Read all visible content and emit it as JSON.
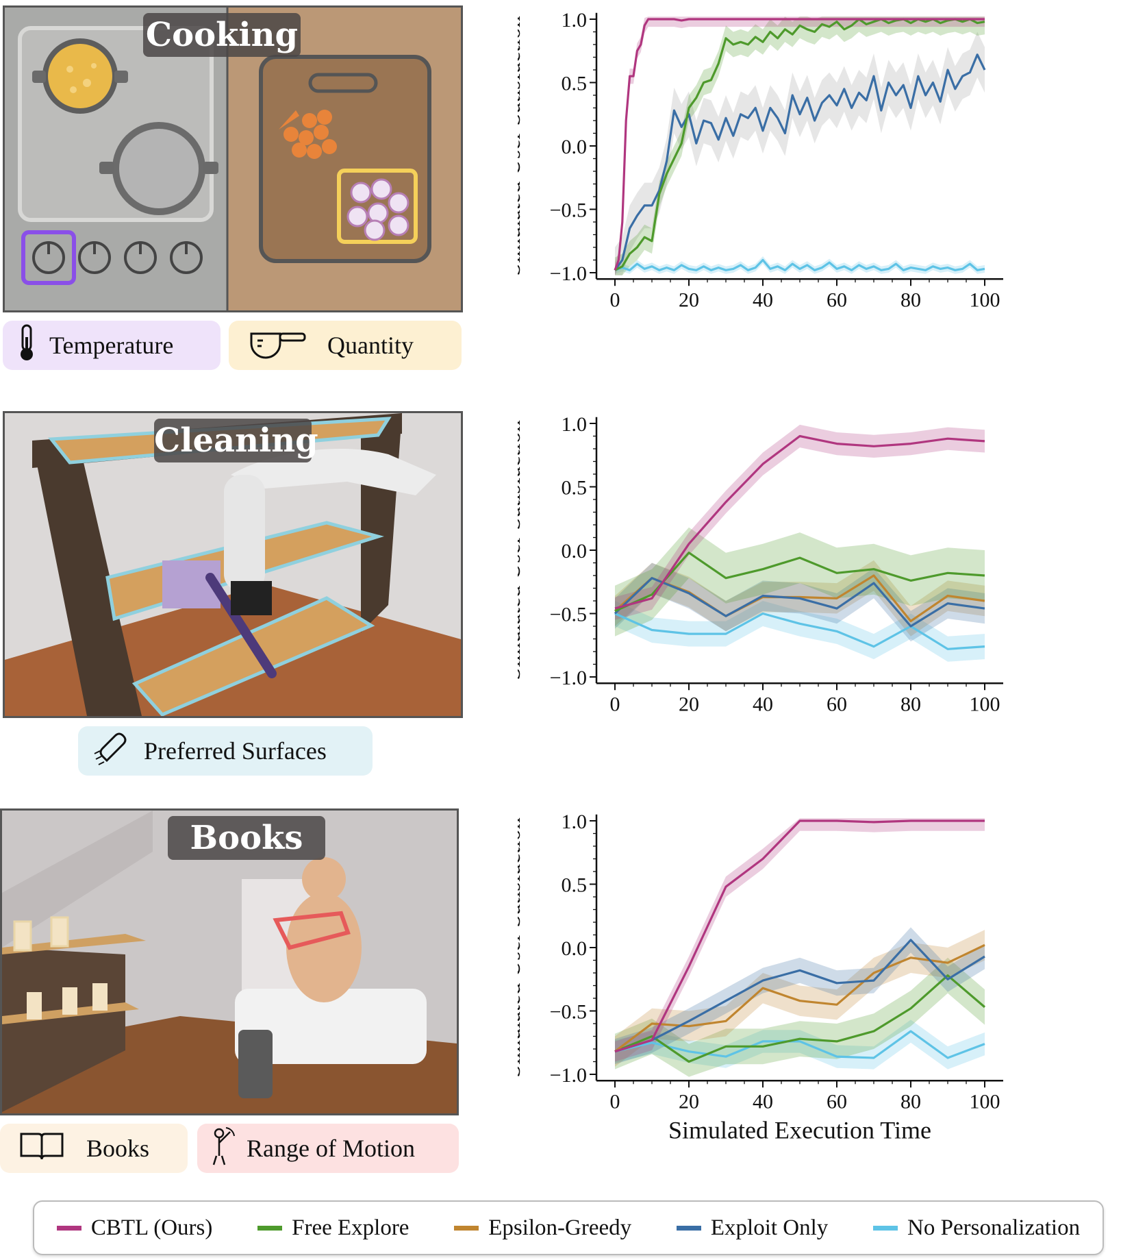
{
  "panels": {
    "cooking": {
      "title": "Cooking",
      "tags": [
        {
          "label": "Temperature",
          "icon": "thermometer-icon",
          "color": "#efe3fa"
        },
        {
          "label": "Quantity",
          "icon": "measuring-cup-icon",
          "color": "#fdf0d2"
        }
      ]
    },
    "cleaning": {
      "title": "Cleaning",
      "tags": [
        {
          "label": "Preferred Surfaces",
          "icon": "wiping-hand-icon",
          "color": "#e2f2f6"
        }
      ]
    },
    "books": {
      "title": "Books",
      "tags": [
        {
          "label": "Books",
          "icon": "open-book-icon",
          "color": "#fdf2e3"
        },
        {
          "label": "Range of Motion",
          "icon": "arm-motion-icon",
          "color": "#fde1e1"
        }
      ]
    }
  },
  "colors": {
    "CBTL (Ours)": "#b0367f",
    "Free Explore": "#4e9a2c",
    "Epsilon-Greedy": "#c0852f",
    "Exploit Only": "#3a6ea5",
    "No Personalization": "#5ec3e6",
    "gray_band": "#9a9a9a"
  },
  "legend": [
    "CBTL (Ours)",
    "Free Explore",
    "Epsilon-Greedy",
    "Exploit Only",
    "No Personalization"
  ],
  "chart_data": [
    {
      "type": "line",
      "title": "",
      "xlabel": "",
      "ylabel": "Simulated User Satisfaction",
      "xlim": [
        0,
        100
      ],
      "ylim": [
        -1.05,
        1.05
      ],
      "xticks": [
        "0",
        "20",
        "40",
        "60",
        "80",
        "100"
      ],
      "yticks": [
        "1.0",
        "0.5",
        "0.0",
        "−0.5",
        "−1.0"
      ],
      "series": [
        {
          "name": "No Personalization",
          "band": "#5ec3e6",
          "x": [
            0,
            2,
            4,
            6,
            8,
            10,
            12,
            14,
            16,
            18,
            20,
            22,
            24,
            26,
            28,
            30,
            32,
            34,
            36,
            38,
            40,
            42,
            44,
            46,
            48,
            50,
            52,
            54,
            56,
            58,
            60,
            62,
            64,
            66,
            68,
            70,
            72,
            74,
            76,
            78,
            80,
            82,
            84,
            86,
            88,
            90,
            92,
            94,
            96,
            98,
            100
          ],
          "y": [
            -0.98,
            -0.96,
            -0.98,
            -0.93,
            -0.97,
            -0.95,
            -0.98,
            -0.96,
            -0.98,
            -0.94,
            -0.97,
            -0.98,
            -0.95,
            -0.98,
            -0.96,
            -0.98,
            -0.97,
            -0.94,
            -0.98,
            -0.96,
            -0.9,
            -0.97,
            -0.95,
            -0.98,
            -0.93,
            -0.97,
            -0.94,
            -0.98,
            -0.96,
            -0.92,
            -0.97,
            -0.95,
            -0.98,
            -0.94,
            -0.97,
            -0.95,
            -0.98,
            -0.97,
            -0.93,
            -0.98,
            -0.96,
            -0.97,
            -0.98,
            -0.95,
            -0.97,
            -0.96,
            -0.98,
            -0.97,
            -0.93,
            -0.98,
            -0.97
          ],
          "spread": 0.03
        },
        {
          "name": "Exploit Only",
          "band": "#9a9a9a",
          "x": [
            0,
            2,
            4,
            6,
            8,
            10,
            12,
            14,
            16,
            18,
            20,
            22,
            24,
            26,
            28,
            30,
            32,
            34,
            36,
            38,
            40,
            42,
            44,
            46,
            48,
            50,
            52,
            54,
            56,
            58,
            60,
            62,
            64,
            66,
            68,
            70,
            72,
            74,
            76,
            78,
            80,
            82,
            84,
            86,
            88,
            90,
            92,
            94,
            96,
            98,
            100
          ],
          "y": [
            -0.98,
            -0.9,
            -0.65,
            -0.55,
            -0.47,
            -0.47,
            -0.35,
            -0.12,
            0.28,
            0.15,
            0.25,
            0.02,
            0.2,
            0.18,
            0.05,
            0.22,
            0.08,
            0.25,
            0.22,
            0.3,
            0.12,
            0.3,
            0.22,
            0.1,
            0.4,
            0.25,
            0.38,
            0.2,
            0.34,
            0.4,
            0.32,
            0.45,
            0.3,
            0.42,
            0.36,
            0.55,
            0.28,
            0.5,
            0.4,
            0.48,
            0.3,
            0.55,
            0.4,
            0.5,
            0.35,
            0.6,
            0.45,
            0.55,
            0.58,
            0.72,
            0.6
          ],
          "spread": 0.18
        },
        {
          "name": "Free Explore",
          "band": "#4e9a2c",
          "x": [
            0,
            2,
            4,
            6,
            8,
            10,
            12,
            14,
            16,
            18,
            20,
            22,
            24,
            26,
            28,
            30,
            32,
            34,
            36,
            38,
            40,
            42,
            44,
            46,
            48,
            50,
            52,
            54,
            56,
            58,
            60,
            62,
            64,
            66,
            68,
            70,
            72,
            74,
            76,
            78,
            80,
            82,
            84,
            86,
            88,
            90,
            92,
            94,
            96,
            98,
            100
          ],
          "y": [
            -0.98,
            -0.95,
            -0.85,
            -0.8,
            -0.72,
            -0.75,
            -0.38,
            -0.22,
            -0.1,
            0.02,
            0.3,
            0.38,
            0.5,
            0.52,
            0.65,
            0.85,
            0.8,
            0.82,
            0.8,
            0.86,
            0.82,
            0.9,
            0.85,
            0.92,
            0.88,
            0.95,
            0.92,
            0.9,
            0.96,
            0.94,
            0.98,
            0.92,
            0.95,
            1.0,
            0.96,
            0.98,
            1.0,
            0.97,
            0.99,
            1.0,
            0.97,
            1.0,
            0.98,
            1.0,
            0.97,
            0.99,
            1.0,
            0.98,
            1.0,
            0.97,
            0.98
          ],
          "spread": 0.1
        },
        {
          "name": "CBTL (Ours)",
          "band": "#b0367f",
          "x": [
            0,
            1,
            2,
            3,
            4,
            5,
            6,
            7,
            8,
            9,
            10,
            12,
            14,
            16,
            18,
            20,
            30,
            40,
            50,
            60,
            70,
            80,
            90,
            100
          ],
          "y": [
            -0.98,
            -0.9,
            -0.6,
            0.2,
            0.55,
            0.55,
            0.75,
            0.8,
            0.95,
            1.0,
            1.0,
            1.0,
            1.0,
            1.0,
            0.99,
            1.0,
            1.0,
            1.0,
            1.0,
            1.0,
            1.0,
            1.0,
            1.0,
            1.0
          ],
          "spread": 0.06
        }
      ]
    },
    {
      "type": "line",
      "title": "",
      "xlabel": "",
      "ylabel": "Simulated User Satisfaction",
      "xlim": [
        0,
        100
      ],
      "ylim": [
        -1.05,
        1.05
      ],
      "xticks": [
        "0",
        "20",
        "40",
        "60",
        "80",
        "100"
      ],
      "yticks": [
        "1.0",
        "0.5",
        "0.0",
        "−0.5",
        "−1.0"
      ],
      "series": [
        {
          "name": "No Personalization",
          "band": "#5ec3e6",
          "x": [
            0,
            10,
            20,
            30,
            40,
            50,
            60,
            70,
            80,
            90,
            100
          ],
          "y": [
            -0.5,
            -0.63,
            -0.66,
            -0.66,
            -0.5,
            -0.58,
            -0.64,
            -0.76,
            -0.6,
            -0.78,
            -0.76
          ],
          "spread": 0.1
        },
        {
          "name": "Epsilon-Greedy",
          "band": "#c0852f",
          "x": [
            0,
            10,
            20,
            30,
            40,
            50,
            60,
            70,
            80,
            90,
            100
          ],
          "y": [
            -0.48,
            -0.22,
            -0.33,
            -0.52,
            -0.37,
            -0.37,
            -0.38,
            -0.2,
            -0.56,
            -0.36,
            -0.4
          ],
          "spread": 0.12
        },
        {
          "name": "Exploit Only",
          "band": "#3a6ea5",
          "x": [
            0,
            10,
            20,
            30,
            40,
            50,
            60,
            70,
            80,
            90,
            100
          ],
          "y": [
            -0.5,
            -0.22,
            -0.34,
            -0.52,
            -0.36,
            -0.38,
            -0.46,
            -0.26,
            -0.6,
            -0.42,
            -0.46
          ],
          "spread": 0.12
        },
        {
          "name": "Free Explore",
          "band": "#4e9a2c",
          "x": [
            0,
            10,
            20,
            30,
            40,
            50,
            60,
            70,
            80,
            90,
            100
          ],
          "y": [
            -0.48,
            -0.35,
            -0.02,
            -0.22,
            -0.15,
            -0.06,
            -0.18,
            -0.15,
            -0.24,
            -0.18,
            -0.2
          ],
          "spread": 0.2
        },
        {
          "name": "CBTL (Ours)",
          "band": "#b0367f",
          "x": [
            0,
            10,
            20,
            30,
            40,
            50,
            60,
            70,
            80,
            90,
            100
          ],
          "y": [
            -0.46,
            -0.38,
            0.05,
            0.38,
            0.68,
            0.9,
            0.84,
            0.82,
            0.84,
            0.88,
            0.86
          ],
          "spread": 0.09
        }
      ]
    },
    {
      "type": "line",
      "title": "",
      "xlabel": "Simulated Execution Time",
      "ylabel": "Simulated User Satisfaction",
      "xlim": [
        0,
        100
      ],
      "ylim": [
        -1.05,
        1.05
      ],
      "xticks": [
        "0",
        "20",
        "40",
        "60",
        "80",
        "100"
      ],
      "yticks": [
        "1.0",
        "0.5",
        "0.0",
        "−0.5",
        "−1.0"
      ],
      "series": [
        {
          "name": "No Personalization",
          "band": "#5ec3e6",
          "x": [
            0,
            10,
            20,
            30,
            40,
            50,
            60,
            70,
            80,
            90,
            100
          ],
          "y": [
            -0.82,
            -0.75,
            -0.82,
            -0.86,
            -0.74,
            -0.74,
            -0.86,
            -0.87,
            -0.66,
            -0.87,
            -0.76
          ],
          "spread": 0.09
        },
        {
          "name": "Free Explore",
          "band": "#4e9a2c",
          "x": [
            0,
            10,
            20,
            30,
            40,
            50,
            60,
            70,
            80,
            90,
            100
          ],
          "y": [
            -0.82,
            -0.7,
            -0.9,
            -0.78,
            -0.78,
            -0.72,
            -0.74,
            -0.66,
            -0.48,
            -0.22,
            -0.47
          ],
          "spread": 0.14
        },
        {
          "name": "Epsilon-Greedy",
          "band": "#c0852f",
          "x": [
            0,
            10,
            20,
            30,
            40,
            50,
            60,
            70,
            80,
            90,
            100
          ],
          "y": [
            -0.82,
            -0.6,
            -0.62,
            -0.58,
            -0.32,
            -0.42,
            -0.45,
            -0.2,
            -0.08,
            -0.12,
            0.02
          ],
          "spread": 0.12
        },
        {
          "name": "Exploit Only",
          "band": "#3a6ea5",
          "x": [
            0,
            10,
            20,
            30,
            40,
            50,
            60,
            70,
            80,
            90,
            100
          ],
          "y": [
            -0.82,
            -0.73,
            -0.58,
            -0.42,
            -0.26,
            -0.18,
            -0.28,
            -0.26,
            0.06,
            -0.25,
            -0.07
          ],
          "spread": 0.1
        },
        {
          "name": "CBTL (Ours)",
          "band": "#b0367f",
          "x": [
            0,
            10,
            20,
            30,
            40,
            50,
            60,
            70,
            80,
            90,
            100
          ],
          "y": [
            -0.82,
            -0.73,
            -0.15,
            0.48,
            0.7,
            1.0,
            1.0,
            0.99,
            1.0,
            1.0,
            1.0
          ],
          "spread": 0.08
        }
      ]
    }
  ]
}
